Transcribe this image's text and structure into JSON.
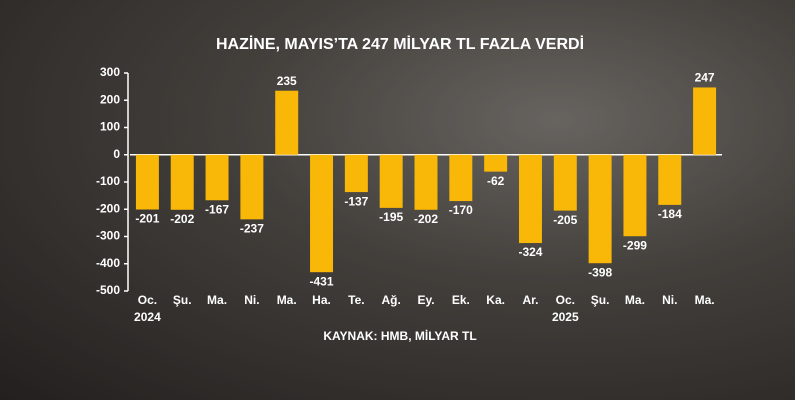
{
  "chart_data": {
    "type": "bar",
    "title": "HAZİNE, MAYIS’TA 247 MİLYAR TL FAZLA VERDİ",
    "source": "KAYNAK: HMB, MİLYAR TL",
    "categories": [
      "Oc.",
      "Şu.",
      "Ma.",
      "Ni.",
      "Ma.",
      "Ha.",
      "Te.",
      "Ağ.",
      "Ey.",
      "Ek.",
      "Ka.",
      "Ar.",
      "Oc.",
      "Şu.",
      "Ma.",
      "Ni.",
      "Ma."
    ],
    "x_sublabels": [
      "2024",
      null,
      null,
      null,
      null,
      null,
      null,
      null,
      null,
      null,
      null,
      null,
      "2025",
      null,
      null,
      null,
      null
    ],
    "values": [
      -201,
      -202,
      -167,
      -237,
      235,
      -431,
      -137,
      -195,
      -202,
      -170,
      -62,
      -324,
      -205,
      -398,
      -299,
      -184,
      247
    ],
    "color": "#f9b707",
    "ylim": [
      -500,
      300
    ],
    "yticks": [
      -500,
      -400,
      -300,
      -200,
      -100,
      0,
      100,
      200,
      300
    ],
    "zero_line": true
  }
}
